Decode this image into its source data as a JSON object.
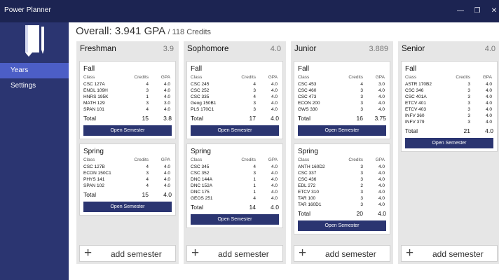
{
  "window": {
    "title": "Power Planner",
    "minimize": "—",
    "maximize": "❐",
    "close": "✕"
  },
  "sidebar": {
    "items": [
      {
        "label": "Years"
      },
      {
        "label": "Settings"
      }
    ]
  },
  "overall": {
    "label": "Overall:",
    "gpa": "3.941 GPA",
    "credits": "/ 118 Credits"
  },
  "headers": {
    "class": "Class",
    "credits": "Credits",
    "gpa": "GPA"
  },
  "total_label": "Total",
  "open_semester_label": "Open Semester",
  "add_semester_label": "add semester",
  "years": [
    {
      "name": "Freshman",
      "gpa": "3.9",
      "semesters": [
        {
          "name": "Fall",
          "courses": [
            {
              "name": "CSC 127A",
              "credits": "4",
              "gpa": "4.0"
            },
            {
              "name": "ENGL 109H",
              "credits": "3",
              "gpa": "4.0"
            },
            {
              "name": "HNRS 195K",
              "credits": "1",
              "gpa": "4.0"
            },
            {
              "name": "MATH 129",
              "credits": "3",
              "gpa": "3.0"
            },
            {
              "name": "SPAN 101",
              "credits": "4",
              "gpa": "4.0"
            }
          ],
          "total_credits": "15",
          "total_gpa": "3.8"
        },
        {
          "name": "Spring",
          "courses": [
            {
              "name": "CSC 127B",
              "credits": "4",
              "gpa": "4.0"
            },
            {
              "name": "ECON 150C1",
              "credits": "3",
              "gpa": "4.0"
            },
            {
              "name": "PHYS 141",
              "credits": "4",
              "gpa": "4.0"
            },
            {
              "name": "SPAN 102",
              "credits": "4",
              "gpa": "4.0"
            }
          ],
          "total_credits": "15",
          "total_gpa": "4.0"
        }
      ]
    },
    {
      "name": "Sophomore",
      "gpa": "4.0",
      "semesters": [
        {
          "name": "Fall",
          "courses": [
            {
              "name": "CSC 245",
              "credits": "4",
              "gpa": "4.0"
            },
            {
              "name": "CSC 252",
              "credits": "3",
              "gpa": "4.0"
            },
            {
              "name": "CSC 335",
              "credits": "4",
              "gpa": "4.0"
            },
            {
              "name": "Geog 150B1",
              "credits": "3",
              "gpa": "4.0"
            },
            {
              "name": "PLS 170C1",
              "credits": "3",
              "gpa": "4.0"
            }
          ],
          "total_credits": "17",
          "total_gpa": "4.0"
        },
        {
          "name": "Spring",
          "courses": [
            {
              "name": "CSC 345",
              "credits": "4",
              "gpa": "4.0"
            },
            {
              "name": "CSC 352",
              "credits": "3",
              "gpa": "4.0"
            },
            {
              "name": "DNC 144A",
              "credits": "1",
              "gpa": "4.0"
            },
            {
              "name": "DNC 152A",
              "credits": "1",
              "gpa": "4.0"
            },
            {
              "name": "DNC 175",
              "credits": "1",
              "gpa": "4.0"
            },
            {
              "name": "GEOS 251",
              "credits": "4",
              "gpa": "4.0"
            }
          ],
          "total_credits": "14",
          "total_gpa": "4.0"
        }
      ]
    },
    {
      "name": "Junior",
      "gpa": "3.889",
      "semesters": [
        {
          "name": "Fall",
          "courses": [
            {
              "name": "CSC 453",
              "credits": "4",
              "gpa": "3.0"
            },
            {
              "name": "CSC 460",
              "credits": "3",
              "gpa": "4.0"
            },
            {
              "name": "CSC 473",
              "credits": "3",
              "gpa": "4.0"
            },
            {
              "name": "ECON 200",
              "credits": "3",
              "gpa": "4.0"
            },
            {
              "name": "GWS 330",
              "credits": "3",
              "gpa": "4.0"
            }
          ],
          "total_credits": "16",
          "total_gpa": "3.75"
        },
        {
          "name": "Spring",
          "courses": [
            {
              "name": "ANTH 160D2",
              "credits": "3",
              "gpa": "4.0"
            },
            {
              "name": "CSC 337",
              "credits": "3",
              "gpa": "4.0"
            },
            {
              "name": "CSC 436",
              "credits": "3",
              "gpa": "4.0"
            },
            {
              "name": "EDL 272",
              "credits": "2",
              "gpa": "4.0"
            },
            {
              "name": "ETCV 310",
              "credits": "3",
              "gpa": "4.0"
            },
            {
              "name": "TAR 100",
              "credits": "3",
              "gpa": "4.0"
            },
            {
              "name": "TAR 160D1",
              "credits": "3",
              "gpa": "4.0"
            }
          ],
          "total_credits": "20",
          "total_gpa": "4.0"
        }
      ]
    },
    {
      "name": "Senior",
      "gpa": "4.0",
      "semesters": [
        {
          "name": "Fall",
          "courses": [
            {
              "name": "ASTR 170B2",
              "credits": "3",
              "gpa": "4.0"
            },
            {
              "name": "CSC 346",
              "credits": "3",
              "gpa": "4.0"
            },
            {
              "name": "CSC 401A",
              "credits": "3",
              "gpa": "4.0"
            },
            {
              "name": "ETCV 401",
              "credits": "3",
              "gpa": "4.0"
            },
            {
              "name": "ETCV 403",
              "credits": "3",
              "gpa": "4.0"
            },
            {
              "name": "INFV 360",
              "credits": "3",
              "gpa": "4.0"
            },
            {
              "name": "INFV 379",
              "credits": "3",
              "gpa": "4.0"
            }
          ],
          "total_credits": "21",
          "total_gpa": "4.0"
        }
      ]
    }
  ]
}
